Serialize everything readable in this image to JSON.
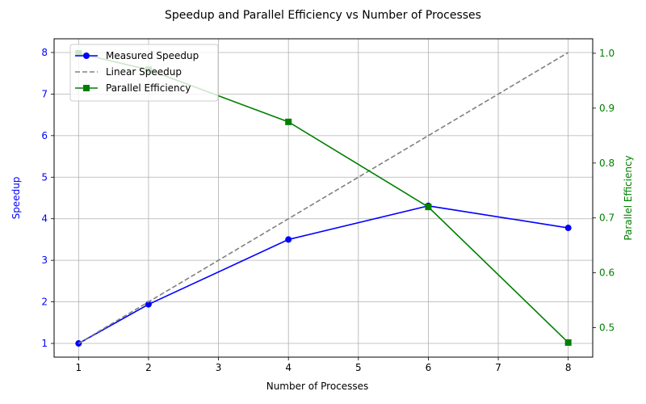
{
  "chart_data": {
    "type": "line",
    "title": "Speedup and Parallel Efficiency vs Number of Processes",
    "xlabel": "Number of Processes",
    "ylabel_left": "Speedup",
    "ylabel_right": "Parallel Efficiency",
    "xlim": [
      0.65,
      8.35
    ],
    "ylim_left": [
      0.67,
      8.33
    ],
    "ylim_right": [
      0.4464,
      1.0264
    ],
    "xticks": [
      1,
      2,
      3,
      4,
      5,
      6,
      7,
      8
    ],
    "yticks_left": [
      1,
      2,
      3,
      4,
      5,
      6,
      7,
      8
    ],
    "yticks_right": [
      0.5,
      0.6,
      0.7,
      0.8,
      0.9,
      1.0
    ],
    "yticklabels_right": [
      "0.5",
      "0.6",
      "0.7",
      "0.8",
      "0.9",
      "1.0"
    ],
    "grid": true,
    "legend_position": "upper-left",
    "colors": {
      "measured": "#0000ff",
      "linear": "#808080",
      "efficiency": "#008000",
      "left_axis_text": "#0000ff",
      "right_axis_text": "#008000"
    },
    "series": [
      {
        "name": "Measured Speedup",
        "axis": "left",
        "marker": "circle",
        "style": "solid",
        "color": "#0000ff",
        "x": [
          1,
          2,
          4,
          6,
          8
        ],
        "y": [
          1.0,
          1.94,
          3.5,
          4.31,
          3.78
        ]
      },
      {
        "name": "Linear Speedup",
        "axis": "left",
        "marker": "none",
        "style": "dashed",
        "color": "#808080",
        "x": [
          1,
          8
        ],
        "y": [
          1,
          8
        ]
      },
      {
        "name": "Parallel Efficiency",
        "axis": "right",
        "marker": "square",
        "style": "solid",
        "color": "#008000",
        "x": [
          1,
          2,
          4,
          6,
          8
        ],
        "y": [
          1.0,
          0.97,
          0.875,
          0.72,
          0.473
        ]
      }
    ]
  }
}
